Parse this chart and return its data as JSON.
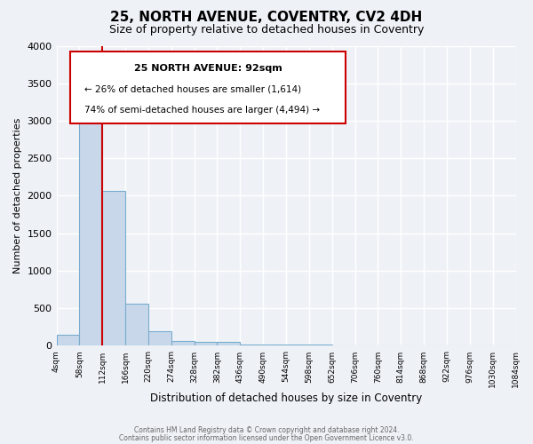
{
  "title": "25, NORTH AVENUE, COVENTRY, CV2 4DH",
  "subtitle": "Size of property relative to detached houses in Coventry",
  "xlabel": "Distribution of detached houses by size in Coventry",
  "ylabel": "Number of detached properties",
  "bin_labels": [
    "4sqm",
    "58sqm",
    "112sqm",
    "166sqm",
    "220sqm",
    "274sqm",
    "328sqm",
    "382sqm",
    "436sqm",
    "490sqm",
    "544sqm",
    "598sqm",
    "652sqm",
    "706sqm",
    "760sqm",
    "814sqm",
    "868sqm",
    "922sqm",
    "976sqm",
    "1030sqm",
    "1084sqm"
  ],
  "bar_values": [
    150,
    3070,
    2070,
    560,
    200,
    70,
    50,
    50,
    20,
    20,
    20,
    20,
    0,
    0,
    0,
    0,
    0,
    0,
    0,
    0
  ],
  "bar_color": "#c8d8ea",
  "bar_edge_color": "#7aaccf",
  "vline_color": "#cc0000",
  "vline_x": 2.0,
  "ylim": [
    0,
    4000
  ],
  "yticks": [
    0,
    500,
    1000,
    1500,
    2000,
    2500,
    3000,
    3500,
    4000
  ],
  "annotation_title": "25 NORTH AVENUE: 92sqm",
  "annotation_line1": "← 26% of detached houses are smaller (1,614)",
  "annotation_line2": "74% of semi-detached houses are larger (4,494) →",
  "annotation_box_color": "#ffffff",
  "annotation_box_edge": "#cc0000",
  "footer1": "Contains HM Land Registry data © Crown copyright and database right 2024.",
  "footer2": "Contains public sector information licensed under the Open Government Licence v3.0.",
  "background_color": "#eef2f7",
  "grid_color": "#ffffff"
}
